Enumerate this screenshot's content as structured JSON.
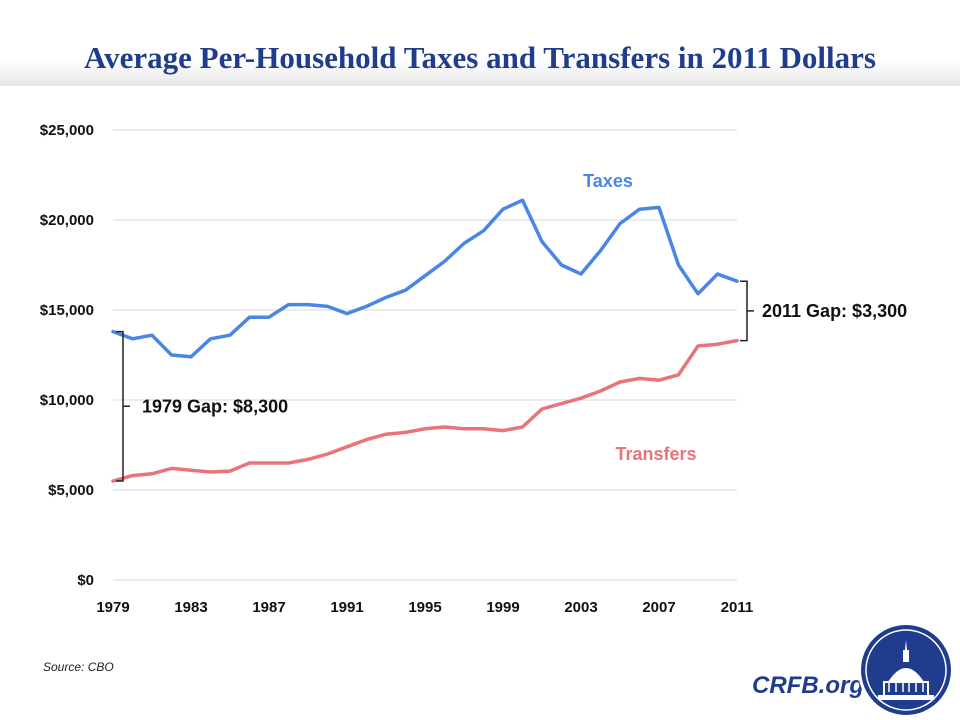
{
  "title": "Average Per-Household Taxes and Transfers in 2011 Dollars",
  "source": "Source: CBO",
  "brand": "CRFB.org",
  "colors": {
    "taxes": "#4a86e8",
    "transfers": "#e8737a",
    "title": "#1f3d8c",
    "grid": "#d9d9d9",
    "brand": "#1f3d8c"
  },
  "chart_data": {
    "type": "line",
    "x": [
      1979,
      1980,
      1981,
      1982,
      1983,
      1984,
      1985,
      1986,
      1987,
      1988,
      1989,
      1990,
      1991,
      1992,
      1993,
      1994,
      1995,
      1996,
      1997,
      1998,
      1999,
      2000,
      2001,
      2002,
      2003,
      2004,
      2005,
      2006,
      2007,
      2008,
      2009,
      2010,
      2011
    ],
    "xticks": [
      1979,
      1983,
      1987,
      1991,
      1995,
      1999,
      2003,
      2007,
      2011
    ],
    "xlim": [
      1979,
      2011
    ],
    "ylim": [
      0,
      25000
    ],
    "yticks": [
      0,
      5000,
      10000,
      15000,
      20000,
      25000
    ],
    "ytick_labels": [
      "$0",
      "$5,000",
      "$10,000",
      "$15,000",
      "$20,000",
      "$25,000"
    ],
    "grid": true,
    "series": [
      {
        "name": "Taxes",
        "values": [
          13800,
          13400,
          13600,
          12500,
          12400,
          13400,
          13600,
          14600,
          14600,
          15300,
          15300,
          15200,
          14800,
          15200,
          15700,
          16100,
          16900,
          17700,
          18700,
          19400,
          20600,
          21100,
          18800,
          17500,
          17000,
          18300,
          19800,
          20600,
          20700,
          17500,
          15900,
          17000,
          16600
        ]
      },
      {
        "name": "Transfers",
        "values": [
          5500,
          5800,
          5900,
          6200,
          6100,
          6000,
          6050,
          6500,
          6500,
          6500,
          6700,
          7000,
          7400,
          7800,
          8100,
          8200,
          8400,
          8500,
          8400,
          8400,
          8300,
          8500,
          9500,
          9800,
          10100,
          10500,
          11000,
          11200,
          11100,
          11400,
          13000,
          13100,
          13300
        ]
      }
    ],
    "annotations": [
      {
        "text": "1979 Gap: $8,300",
        "year": 1979,
        "from": 5500,
        "to": 13800
      },
      {
        "text": "2011 Gap: $3,300",
        "year": 2011,
        "from": 13300,
        "to": 16600
      }
    ]
  }
}
